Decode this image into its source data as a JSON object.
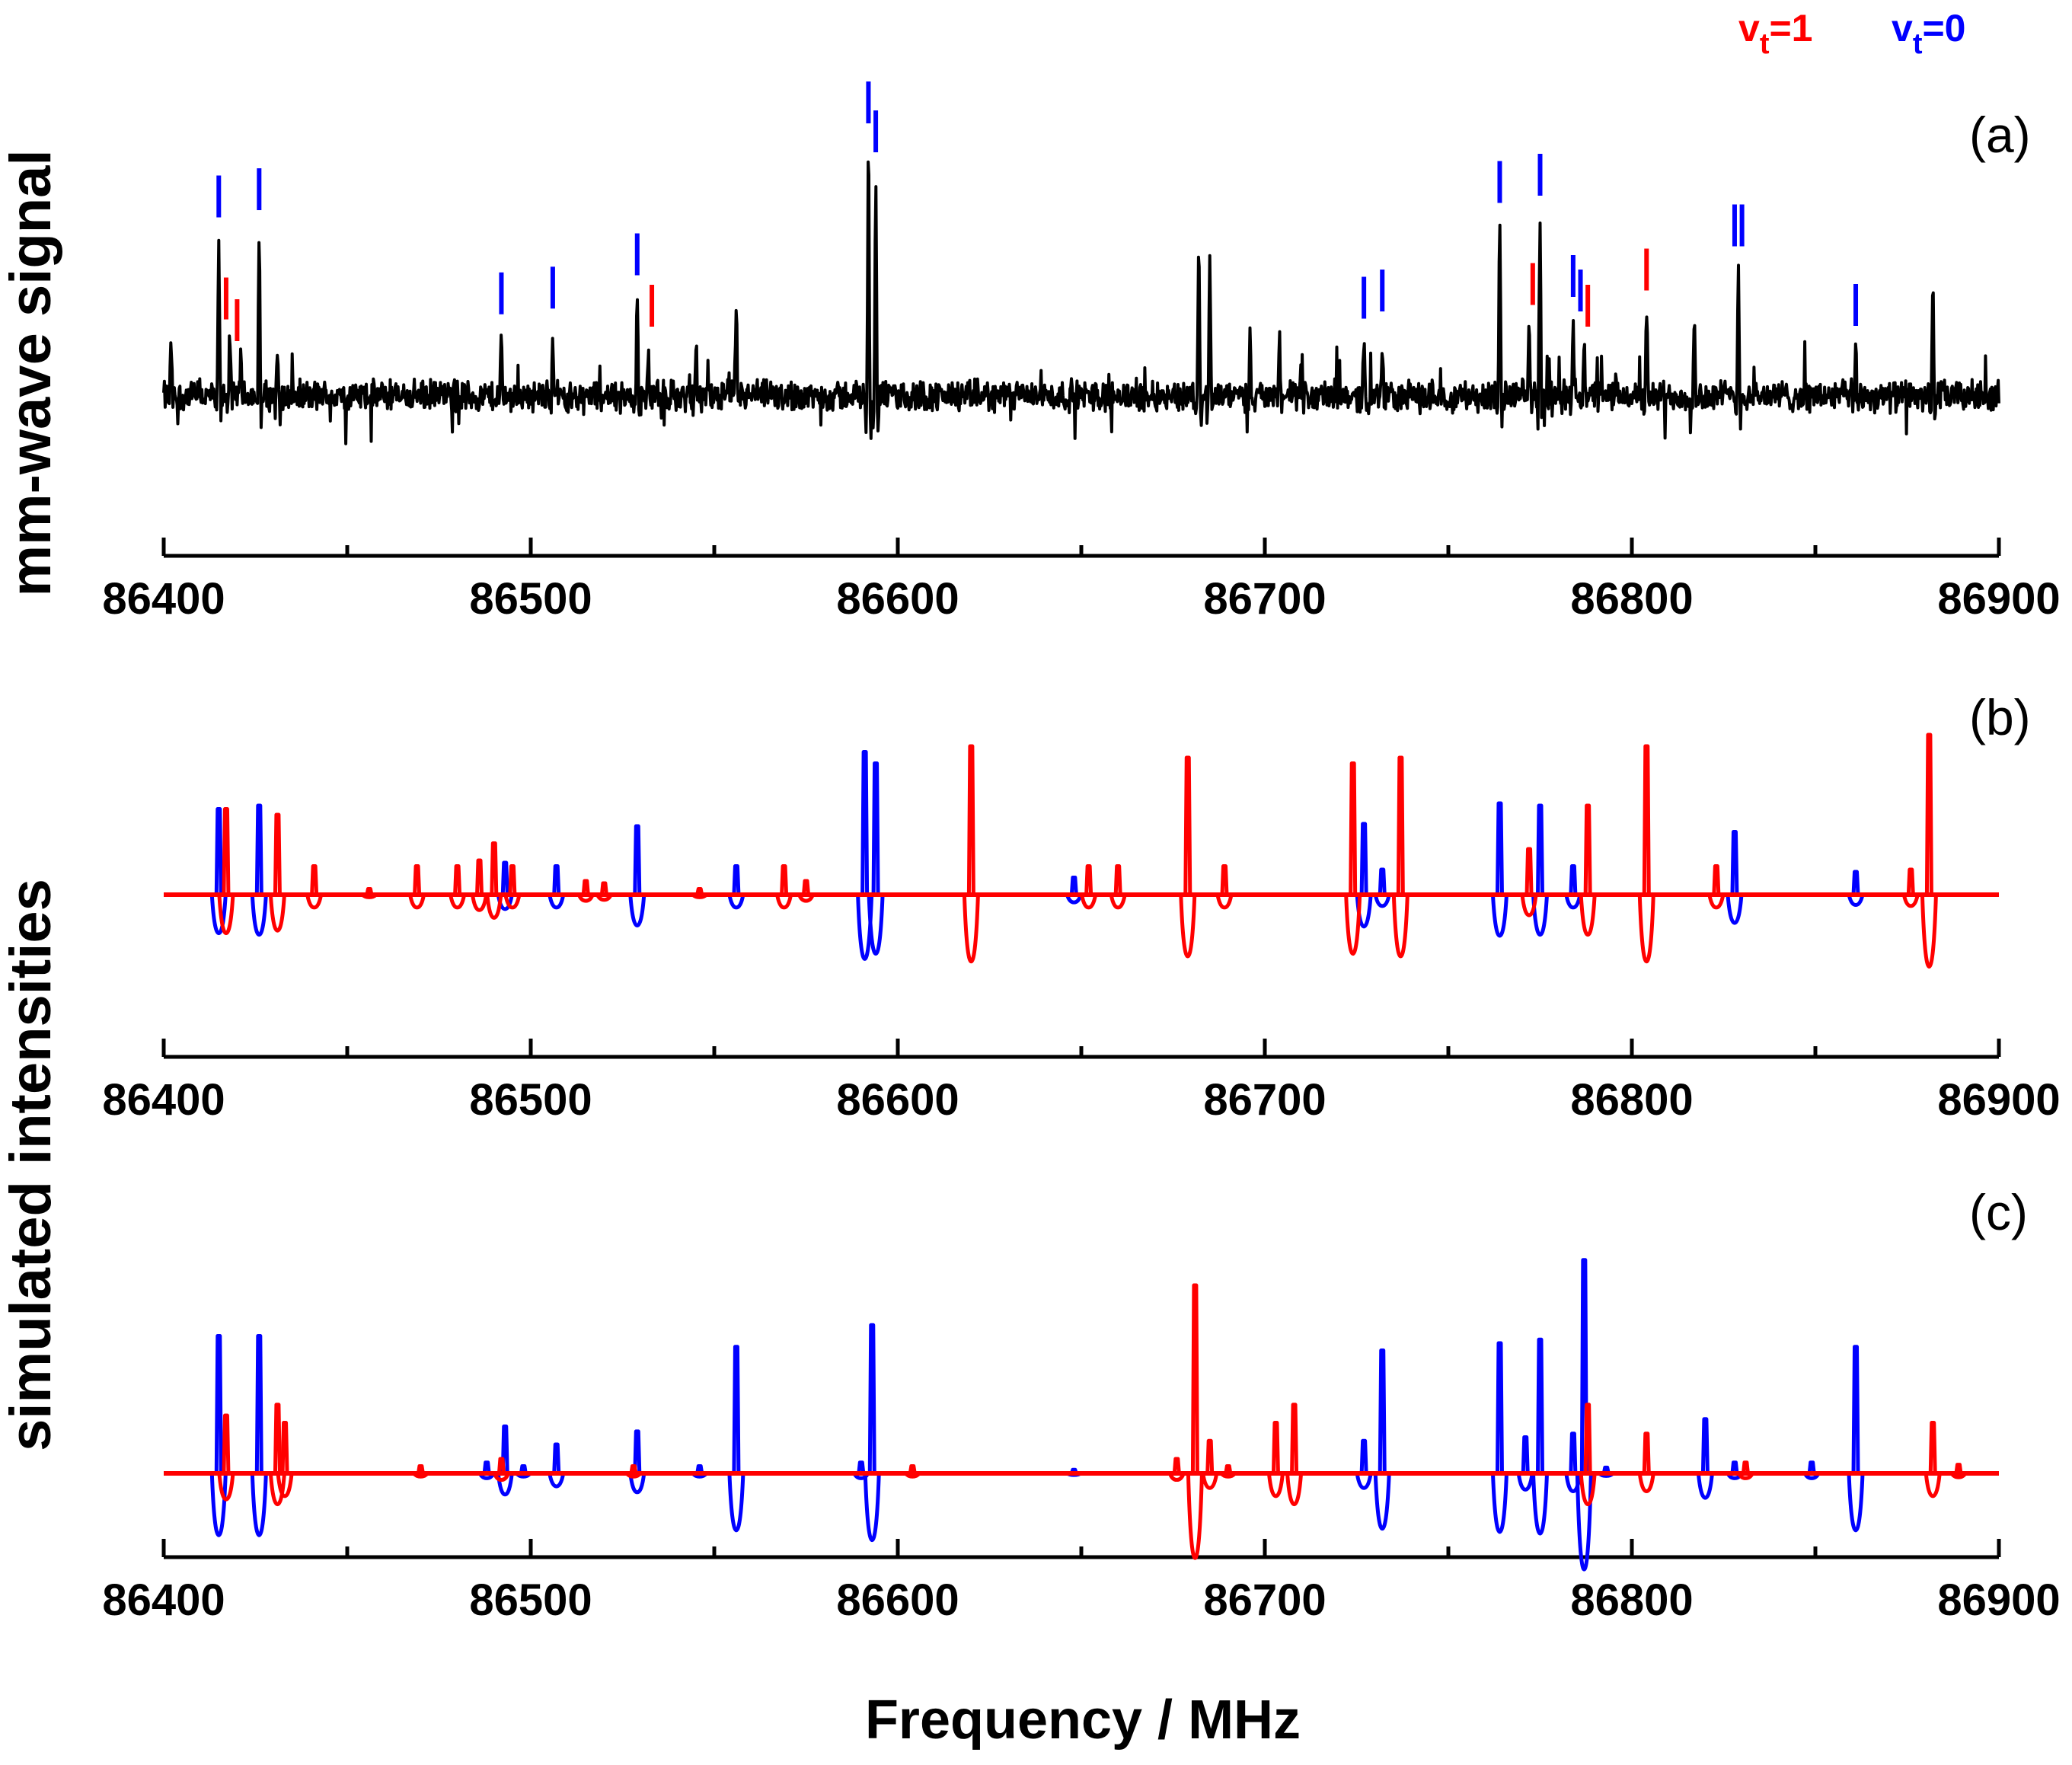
{
  "chart_data": {
    "type": "line",
    "xlabel": "Frequency / MHz",
    "xlim": [
      86400,
      86900
    ],
    "tick_labels": [
      "86400",
      "86500",
      "86600",
      "86700",
      "86800",
      "86900"
    ],
    "legend": [
      {
        "main": "v",
        "sub": "t",
        "suffix": "=1",
        "color": "#ff0000"
      },
      {
        "main": "v",
        "sub": "t",
        "suffix": "=0",
        "color": "#0000ff"
      }
    ],
    "colors": {
      "vt1": "#ff0000",
      "vt0": "#0000ff",
      "observed": "#000000"
    },
    "panels": [
      {
        "label": "(a)",
        "ylabel": "mm-wave signal",
        "series": "observed",
        "ylim": [
          -1.05,
          1.85
        ],
        "noise_level": 0.08,
        "peaks": [
          {
            "x": 86402,
            "h": 0.35
          },
          {
            "x": 86415,
            "h": 1.05
          },
          {
            "x": 86418,
            "h": 0.45
          },
          {
            "x": 86421,
            "h": 0.3
          },
          {
            "x": 86426,
            "h": 1.1
          },
          {
            "x": 86431,
            "h": 0.3
          },
          {
            "x": 86492,
            "h": 0.38
          },
          {
            "x": 86506,
            "h": 0.42
          },
          {
            "x": 86529,
            "h": 0.65
          },
          {
            "x": 86532,
            "h": 0.4
          },
          {
            "x": 86545,
            "h": 0.4
          },
          {
            "x": 86556,
            "h": 0.55
          },
          {
            "x": 86592,
            "h": 1.7
          },
          {
            "x": 86594,
            "h": 1.5
          },
          {
            "x": 86682,
            "h": 1.1
          },
          {
            "x": 86685,
            "h": 0.95
          },
          {
            "x": 86696,
            "h": 0.5
          },
          {
            "x": 86704,
            "h": 0.45
          },
          {
            "x": 86727,
            "h": 0.35
          },
          {
            "x": 86732,
            "h": 0.4
          },
          {
            "x": 86764,
            "h": 1.15
          },
          {
            "x": 86772,
            "h": 0.55
          },
          {
            "x": 86775,
            "h": 1.2
          },
          {
            "x": 86784,
            "h": 0.5
          },
          {
            "x": 86787,
            "h": 0.4
          },
          {
            "x": 86804,
            "h": 0.65
          },
          {
            "x": 86817,
            "h": 0.5
          },
          {
            "x": 86829,
            "h": 0.85
          },
          {
            "x": 86861,
            "h": 0.3
          },
          {
            "x": 86882,
            "h": 0.75
          }
        ],
        "assign_vt0": [
          86415,
          86426,
          86492,
          86506,
          86529,
          86592,
          86594,
          86727,
          86732,
          86764,
          86775,
          86784,
          86786,
          86828,
          86830,
          86861
        ],
        "assign_vt1": [
          86417,
          86420,
          86533,
          86773,
          86788,
          86804
        ]
      },
      {
        "label": "(b)",
        "ylabel": "simulated intensities",
        "ylim": [
          -1.3,
          1.45
        ],
        "red_lines": [
          {
            "x": 86417,
            "h": 0.75
          },
          {
            "x": 86431,
            "h": 0.7
          },
          {
            "x": 86441,
            "h": 0.25
          },
          {
            "x": 86456,
            "h": 0.05
          },
          {
            "x": 86469,
            "h": 0.25
          },
          {
            "x": 86480,
            "h": 0.25
          },
          {
            "x": 86486,
            "h": 0.3
          },
          {
            "x": 86490,
            "h": 0.45
          },
          {
            "x": 86495,
            "h": 0.25
          },
          {
            "x": 86515,
            "h": 0.12
          },
          {
            "x": 86520,
            "h": 0.1
          },
          {
            "x": 86546,
            "h": 0.05
          },
          {
            "x": 86569,
            "h": 0.25
          },
          {
            "x": 86575,
            "h": 0.12
          },
          {
            "x": 86620,
            "h": 1.3
          },
          {
            "x": 86652,
            "h": 0.25
          },
          {
            "x": 86660,
            "h": 0.25
          },
          {
            "x": 86679,
            "h": 1.2
          },
          {
            "x": 86689,
            "h": 0.25
          },
          {
            "x": 86724,
            "h": 1.15
          },
          {
            "x": 86737,
            "h": 1.2
          },
          {
            "x": 86772,
            "h": 0.4
          },
          {
            "x": 86788,
            "h": 0.78
          },
          {
            "x": 86804,
            "h": 1.3
          },
          {
            "x": 86823,
            "h": 0.25
          },
          {
            "x": 86876,
            "h": 0.22
          },
          {
            "x": 86881,
            "h": 1.4
          }
        ],
        "blue_lines": [
          {
            "x": 86415,
            "h": 0.75
          },
          {
            "x": 86426,
            "h": 0.78
          },
          {
            "x": 86493,
            "h": 0.28
          },
          {
            "x": 86507,
            "h": 0.25
          },
          {
            "x": 86529,
            "h": 0.6
          },
          {
            "x": 86556,
            "h": 0.25
          },
          {
            "x": 86591,
            "h": 1.25
          },
          {
            "x": 86594,
            "h": 1.15
          },
          {
            "x": 86648,
            "h": 0.15
          },
          {
            "x": 86727,
            "h": 0.62
          },
          {
            "x": 86732,
            "h": 0.22
          },
          {
            "x": 86764,
            "h": 0.8
          },
          {
            "x": 86775,
            "h": 0.78
          },
          {
            "x": 86784,
            "h": 0.25
          },
          {
            "x": 86828,
            "h": 0.55
          },
          {
            "x": 86861,
            "h": 0.2
          }
        ]
      },
      {
        "label": "(c)",
        "ylabel": "",
        "ylim": [
          -0.75,
          2.75
        ],
        "red_lines": [
          {
            "x": 86417,
            "h": 0.8
          },
          {
            "x": 86431,
            "h": 0.95
          },
          {
            "x": 86433,
            "h": 0.7
          },
          {
            "x": 86470,
            "h": 0.1
          },
          {
            "x": 86492,
            "h": 0.2
          },
          {
            "x": 86528,
            "h": 0.1
          },
          {
            "x": 86604,
            "h": 0.1
          },
          {
            "x": 86676,
            "h": 0.2
          },
          {
            "x": 86681,
            "h": 2.6
          },
          {
            "x": 86685,
            "h": 0.45
          },
          {
            "x": 86690,
            "h": 0.1
          },
          {
            "x": 86703,
            "h": 0.7
          },
          {
            "x": 86708,
            "h": 0.95
          },
          {
            "x": 86788,
            "h": 0.95
          },
          {
            "x": 86804,
            "h": 0.55
          },
          {
            "x": 86831,
            "h": 0.15
          },
          {
            "x": 86882,
            "h": 0.7
          },
          {
            "x": 86889,
            "h": 0.12
          }
        ],
        "blue_lines": [
          {
            "x": 86415,
            "h": 1.9
          },
          {
            "x": 86426,
            "h": 1.9
          },
          {
            "x": 86488,
            "h": 0.15
          },
          {
            "x": 86493,
            "h": 0.65
          },
          {
            "x": 86498,
            "h": 0.1
          },
          {
            "x": 86507,
            "h": 0.4
          },
          {
            "x": 86529,
            "h": 0.58
          },
          {
            "x": 86546,
            "h": 0.1
          },
          {
            "x": 86556,
            "h": 1.75
          },
          {
            "x": 86590,
            "h": 0.15
          },
          {
            "x": 86593,
            "h": 2.05
          },
          {
            "x": 86648,
            "h": 0.05
          },
          {
            "x": 86727,
            "h": 0.45
          },
          {
            "x": 86732,
            "h": 1.7
          },
          {
            "x": 86764,
            "h": 1.8
          },
          {
            "x": 86771,
            "h": 0.5
          },
          {
            "x": 86775,
            "h": 1.85
          },
          {
            "x": 86784,
            "h": 0.55
          },
          {
            "x": 86787,
            "h": 2.95
          },
          {
            "x": 86793,
            "h": 0.08
          },
          {
            "x": 86820,
            "h": 0.75
          },
          {
            "x": 86828,
            "h": 0.15
          },
          {
            "x": 86849,
            "h": 0.15
          },
          {
            "x": 86861,
            "h": 1.75
          }
        ]
      }
    ]
  }
}
